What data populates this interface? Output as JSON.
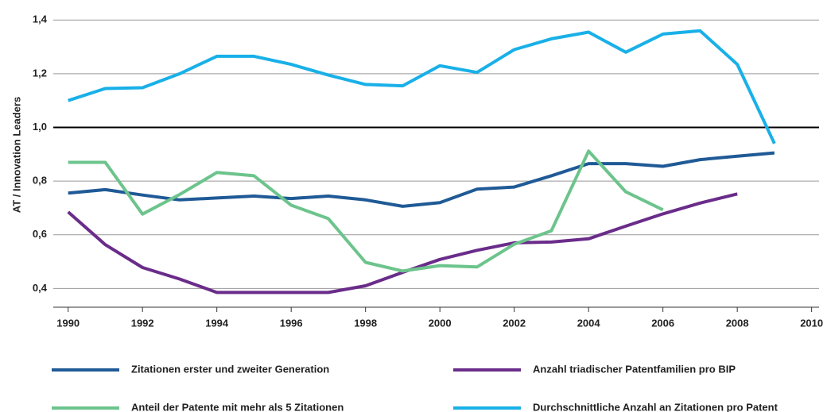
{
  "chart_data": {
    "type": "line",
    "y_label": "AT / Innovation Leaders",
    "x": [
      1990,
      1991,
      1992,
      1993,
      1994,
      1995,
      1996,
      1997,
      1998,
      1999,
      2000,
      2001,
      2002,
      2003,
      2004,
      2005,
      2006,
      2007,
      2008,
      2009
    ],
    "series": [
      {
        "name": "Zitationen erster und zweiter Generation",
        "color": "#1f5a96",
        "values": [
          0.755,
          0.768,
          0.748,
          0.73,
          0.737,
          0.744,
          0.735,
          0.744,
          0.73,
          0.706,
          0.72,
          0.77,
          0.778,
          0.82,
          0.865,
          0.865,
          0.855,
          0.88,
          0.893,
          0.905
        ]
      },
      {
        "name": "Anzahl triadischer Patentfamilien pro BIP",
        "color": "#6a2c8a",
        "values": [
          0.685,
          0.563,
          0.478,
          0.435,
          0.385,
          0.385,
          0.385,
          0.385,
          0.41,
          0.46,
          0.508,
          0.542,
          0.57,
          0.573,
          0.585,
          0.632,
          0.678,
          0.718,
          0.752,
          null
        ]
      },
      {
        "name": "Anteil der Patente mit mehr als 5 Zitationen",
        "color": "#6cc48c",
        "values": [
          0.87,
          0.87,
          0.677,
          0.75,
          0.832,
          0.82,
          0.71,
          0.66,
          0.497,
          0.465,
          0.485,
          0.48,
          0.565,
          0.615,
          0.912,
          0.76,
          0.693,
          null,
          null,
          null
        ]
      },
      {
        "name": "Durchschnittliche Anzahl an Zitationen pro Patent",
        "color": "#19b0e8",
        "values": [
          1.1,
          1.145,
          1.148,
          1.2,
          1.265,
          1.265,
          1.235,
          1.195,
          1.16,
          1.155,
          1.23,
          1.205,
          1.29,
          1.33,
          1.355,
          1.28,
          1.348,
          1.36,
          1.235,
          0.94
        ]
      }
    ],
    "xlim": [
      1989.6,
      2010.2
    ],
    "xticks": [
      1990,
      1992,
      1994,
      1996,
      1998,
      2000,
      2002,
      2004,
      2006,
      2008,
      2010
    ],
    "ylim": [
      0.33,
      1.46
    ],
    "yticks": [
      {
        "value": 0.4,
        "label": "0,4"
      },
      {
        "value": 0.6,
        "label": "0,6"
      },
      {
        "value": 0.8,
        "label": "0,8"
      },
      {
        "value": 1.0,
        "label": "1,0"
      },
      {
        "value": 1.2,
        "label": "1,2"
      },
      {
        "value": 1.4,
        "label": "1,4"
      }
    ],
    "reference_line": 1.0,
    "grid": true
  }
}
